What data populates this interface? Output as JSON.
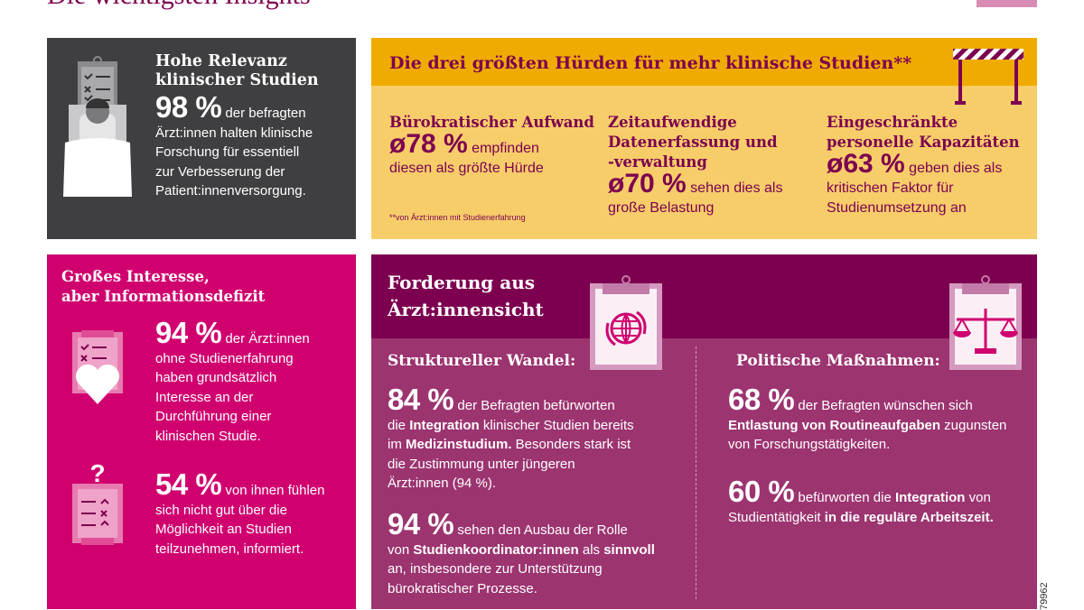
{
  "page_title": "Die wichtigsten Insights",
  "code": "79962",
  "colors": {
    "primary": "#7d0050",
    "pink": "#d0006f",
    "purple_light": "#9c3470",
    "yellow": "#f0ab00",
    "yellow_light": "#f7cd6a",
    "dark": "#3f3f41"
  },
  "relevance": {
    "title_1": "Hohe Relevanz",
    "title_2": "klinischer Studien",
    "stat": "98 %",
    "lines": [
      "der befragten",
      "Ärzt:innen halten klinische",
      "Forschung für essentiell",
      "zur Verbesserung der",
      "Patient:innenversorgung."
    ],
    "icon": "patient-bed-clipboard-icon"
  },
  "hurdles": {
    "title": "Die drei größten Hürden für mehr klinische Studien**",
    "icon": "barrier-icon",
    "footnote": "**von Ärzt:innen mit Studienerfahrung",
    "items": [
      {
        "heading": [
          "Bürokratischer Aufwand"
        ],
        "stat": "ø78 %",
        "lines": [
          "empfinden",
          "diesen als größte Hürde"
        ]
      },
      {
        "heading": [
          "Zeitaufwendige",
          "Datenerfassung und",
          "-verwaltung"
        ],
        "stat": "ø70 %",
        "lines": [
          "sehen dies als",
          "große Belastung"
        ]
      },
      {
        "heading": [
          "Eingeschränkte",
          "personelle Kapazitäten"
        ],
        "stat": "ø63 %",
        "lines": [
          "geben dies als",
          "kritischen Faktor für",
          "Studienumsetzung an"
        ]
      }
    ]
  },
  "interest": {
    "title_1": "Großes Interesse,",
    "title_2": "aber Informationsdefizit",
    "items": [
      {
        "icon": "clipboard-heart-icon",
        "stat": "94 %",
        "lines": [
          "der Ärzt:innen",
          "ohne Studienerfahrung",
          "haben grundsätzlich",
          "Interesse an der",
          "Durchführung einer",
          "klinischen Studie."
        ]
      },
      {
        "icon": "clipboard-question-icon",
        "stat": "54 %",
        "lines": [
          "von ihnen fühlen",
          "sich nicht gut über die",
          "Möglichkeit an Studien",
          "teilzunehmen, informiert."
        ]
      }
    ]
  },
  "demands": {
    "title_1": "Forderung aus",
    "title_2": "Ärzt:innensicht",
    "left": {
      "heading": "Struktureller Wandel:",
      "icon": "globe-clipboard-icon",
      "s1": {
        "stat": "84 %",
        "t1": "der Befragten befürworten",
        "t2a": "die ",
        "t2b": "Integration",
        "t2c": " klinischer Studien bereits",
        "t3a": "im ",
        "t3b": "Medizinstudium.",
        "t3c": " Besonders stark ist",
        "t4": "die Zustimmung unter jüngeren",
        "t5": "Ärzt:innen (94 %)."
      },
      "s2": {
        "stat": "94 %",
        "t1": "sehen den Ausbau der Rolle",
        "t2a": "von ",
        "t2b": "Studienkoordinator:innen",
        "t2c": " als ",
        "t2d": "sinnvoll",
        "t3": "an, insbesondere zur Unterstützung",
        "t4": "bürokratischer Prozesse."
      }
    },
    "right": {
      "heading": "Politische Maßnahmen:",
      "icon": "scales-clipboard-icon",
      "s1": {
        "stat": "68 %",
        "t1": "der Befragten wünschen sich",
        "t2a": "Entlastung von Routineaufgaben",
        "t2b": " zugunsten",
        "t3": "von Forschungstätigkeiten."
      },
      "s2": {
        "stat": "60 %",
        "t1a": "befürworten die ",
        "t1b": "Integration",
        "t1c": " von",
        "t2a": "Studientätigkeit ",
        "t2b": "in die reguläre Arbeitszeit."
      }
    }
  }
}
